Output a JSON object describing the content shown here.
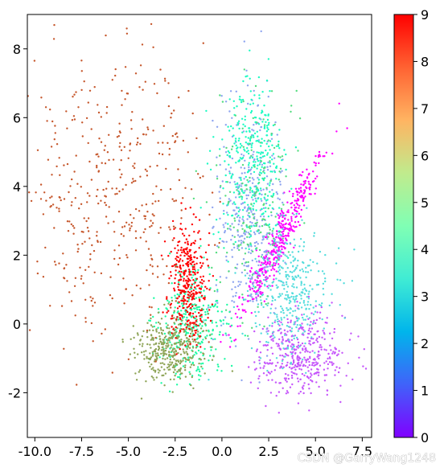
{
  "chart_data": {
    "type": "scatter",
    "title": "",
    "xlabel": "",
    "ylabel": "",
    "xlim": [
      -10.4,
      8.0
    ],
    "ylim": [
      -3.3,
      9.0
    ],
    "grid": false,
    "x_ticks": [
      "-10.0",
      "-7.5",
      "-5.0",
      "-2.5",
      "0.0",
      "2.5",
      "5.0",
      "7.5"
    ],
    "x_tick_values": [
      -10.0,
      -7.5,
      -5.0,
      -2.5,
      0.0,
      2.5,
      5.0,
      7.5
    ],
    "y_ticks": [
      "-2",
      "0",
      "2",
      "4",
      "6",
      "8"
    ],
    "y_tick_values": [
      -2,
      0,
      2,
      4,
      6,
      8
    ],
    "colorbar": {
      "colormap": "rainbow",
      "range": [
        0,
        9
      ],
      "ticks": [
        "0",
        "1",
        "2",
        "3",
        "4",
        "5",
        "6",
        "7",
        "8",
        "9"
      ],
      "tick_values": [
        0,
        1,
        2,
        3,
        4,
        5,
        6,
        7,
        8,
        9
      ],
      "placement": "right"
    },
    "clusters": [
      {
        "label_value": 0,
        "center": [
          3.2,
          2.6
        ],
        "spread": [
          1.6,
          1.5
        ],
        "count": 420,
        "shape": "diagonal-band"
      },
      {
        "label_value": 1,
        "center": [
          4.2,
          -0.9
        ],
        "spread": [
          1.2,
          0.6
        ],
        "count": 420
      },
      {
        "label_value": 2,
        "center": [
          1.5,
          3.2
        ],
        "spread": [
          0.9,
          1.6
        ],
        "count": 380
      },
      {
        "label_value": 3,
        "center": [
          3.6,
          0.9
        ],
        "spread": [
          1.1,
          0.9
        ],
        "count": 360
      },
      {
        "label_value": 4,
        "center": [
          1.6,
          4.6
        ],
        "spread": [
          0.9,
          1.2
        ],
        "count": 340
      },
      {
        "label_value": 5,
        "center": [
          -1.6,
          0.0
        ],
        "spread": [
          0.9,
          0.8
        ],
        "count": 330
      },
      {
        "label_value": 6,
        "center": [
          1.8,
          3.5
        ],
        "spread": [
          1.0,
          1.6
        ],
        "count": 180
      },
      {
        "label_value": 7,
        "center": [
          -2.8,
          -0.7
        ],
        "spread": [
          0.9,
          0.5
        ],
        "count": 380
      },
      {
        "label_value": 8,
        "center": [
          -5.8,
          3.8
        ],
        "spread": [
          2.4,
          2.0
        ],
        "count": 420
      },
      {
        "label_value": 9,
        "center": [
          -1.8,
          1.3
        ],
        "spread": [
          0.5,
          0.8
        ],
        "count": 360
      }
    ]
  },
  "watermark": "CSDN @GarryWang1248"
}
